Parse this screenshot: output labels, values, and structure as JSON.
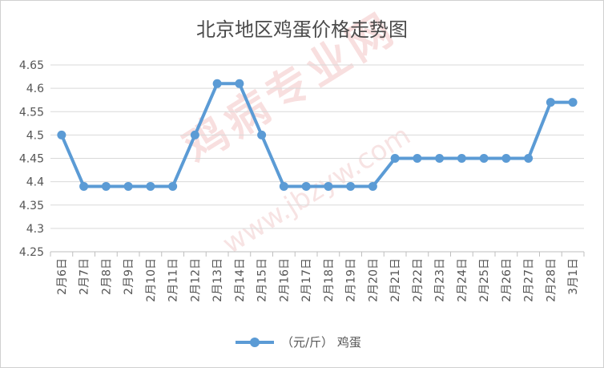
{
  "colors": {
    "series": "#5b9bd5",
    "grid": "#d9d9d9",
    "axis": "#bfbfbf",
    "text": "#555555",
    "title": "#4a4a4a"
  },
  "chart_data": {
    "type": "line",
    "title": "北京地区鸡蛋价格走势图",
    "xlabel": "",
    "ylabel": "",
    "categories": [
      "2月6日",
      "2月7日",
      "2月8日",
      "2月9日",
      "2月10日",
      "2月11日",
      "2月12日",
      "2月13日",
      "2月14日",
      "2月15日",
      "2月16日",
      "2月17日",
      "2月18日",
      "2月19日",
      "2月20日",
      "2月21日",
      "2月22日",
      "2月23日",
      "2月24日",
      "2月25日",
      "2月26日",
      "2月27日",
      "2月28日",
      "3月1日"
    ],
    "series": [
      {
        "name": "（元/斤） 鸡蛋",
        "values": [
          4.5,
          4.39,
          4.39,
          4.39,
          4.39,
          4.39,
          4.5,
          4.61,
          4.61,
          4.5,
          4.39,
          4.39,
          4.39,
          4.39,
          4.39,
          4.45,
          4.45,
          4.45,
          4.45,
          4.45,
          4.45,
          4.45,
          4.57,
          4.57
        ]
      }
    ],
    "ylim": [
      4.25,
      4.65
    ],
    "yticks": [
      "4.25",
      "4.3",
      "4.35",
      "4.4",
      "4.45",
      "4.5",
      "4.55",
      "4.6",
      "4.65"
    ],
    "grid": true,
    "legend": "bottom"
  }
}
